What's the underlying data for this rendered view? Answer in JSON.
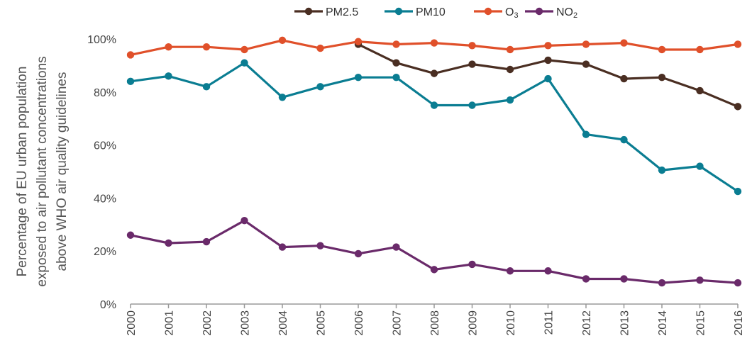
{
  "chart_data": {
    "type": "line",
    "title": "",
    "xlabel": "",
    "ylabel": "Percentage of EU urban population exposed to air pollutant concentrations above WHO air quality guidelines",
    "ylabel_lines": [
      "Percentage of EU urban population",
      "exposed to air pollutant concentrations",
      "above WHO air quality guidelines"
    ],
    "x": [
      "2000",
      "2001",
      "2002",
      "2003",
      "2004",
      "2005",
      "2006",
      "2007",
      "2008",
      "2009",
      "2010",
      "2011",
      "2012",
      "2013",
      "2014",
      "2015",
      "2016"
    ],
    "ylim": [
      0,
      100
    ],
    "yticks": [
      "0%",
      "20%",
      "40%",
      "60%",
      "80%",
      "100%"
    ],
    "grid": false,
    "legend_position": "top-center",
    "series": [
      {
        "name": "PM2.5",
        "color": "#4a2e22",
        "values": [
          null,
          null,
          null,
          null,
          null,
          null,
          98,
          91,
          87,
          90.5,
          88.5,
          92,
          90.5,
          85,
          85.5,
          80.5,
          74.5
        ]
      },
      {
        "name": "PM10",
        "color": "#0a7d92",
        "values": [
          84,
          86,
          82,
          91,
          78,
          82,
          85.5,
          85.5,
          75,
          75,
          77,
          85,
          64,
          62,
          50.5,
          52,
          42.5
        ]
      },
      {
        "name": "O3",
        "color": "#e0502a",
        "values": [
          94,
          97,
          97,
          96,
          99.5,
          96.5,
          99,
          98,
          98.5,
          97.5,
          96,
          97.5,
          98,
          98.5,
          96,
          96,
          98
        ]
      },
      {
        "name": "NO2",
        "color": "#6a2a6a",
        "values": [
          26,
          23,
          23.5,
          31.5,
          21.5,
          22,
          19,
          21.5,
          13,
          15,
          12.5,
          12.5,
          9.5,
          9.5,
          8,
          9,
          8
        ]
      }
    ]
  }
}
